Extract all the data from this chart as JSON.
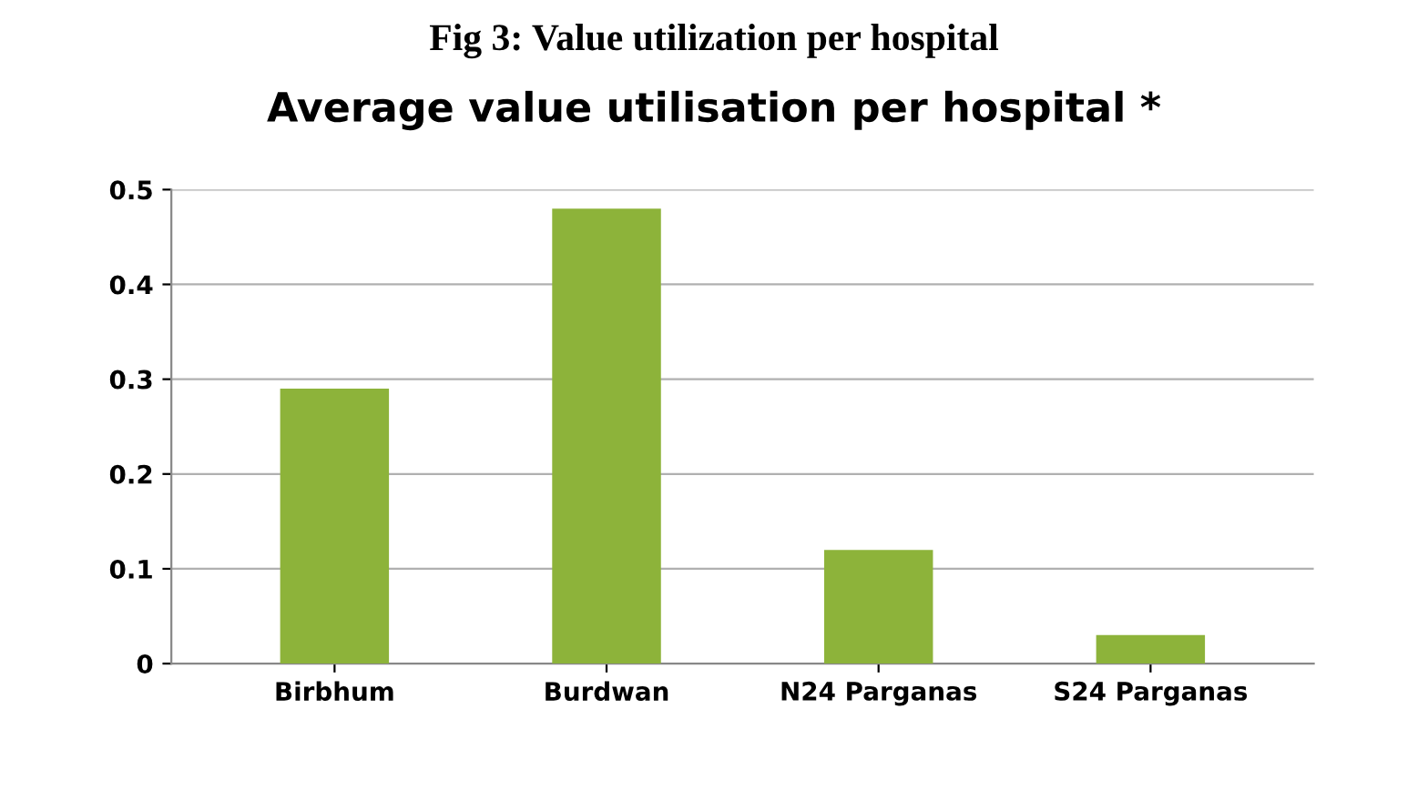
{
  "chart_data": {
    "type": "bar",
    "title": "Average value utilisation per hospital *",
    "annotations": [
      "Fig 3: Value utilization per hospital"
    ],
    "categories": [
      "Birbhum",
      "Burdwan",
      "N24 Parganas",
      "S24 Parganas"
    ],
    "values": [
      0.29,
      0.48,
      0.12,
      0.03
    ],
    "color": "#8db33a",
    "ylim": [
      0,
      0.5
    ],
    "yticks": [
      0,
      0.1,
      0.2,
      0.3,
      0.4,
      0.5
    ],
    "grid": "y",
    "legend": false
  }
}
